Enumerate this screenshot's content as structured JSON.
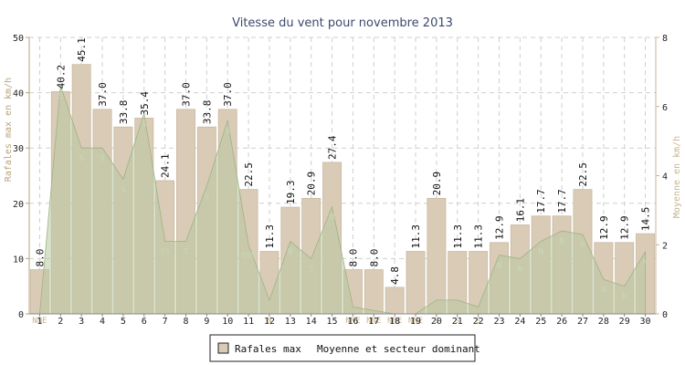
{
  "chart_data": {
    "type": "bar",
    "title": "Vitesse du vent pour novembre 2013",
    "ylabel_left": "Rafales max en km/h",
    "ylabel_right": "Moyenne en km/h",
    "ylim_left": [
      0,
      50
    ],
    "yticks_left": [
      0,
      10,
      20,
      30,
      40,
      50
    ],
    "ylim_right": [
      0,
      8
    ],
    "yticks_right": [
      0,
      2,
      4,
      6,
      8
    ],
    "grid": true,
    "categories": [
      "1",
      "2",
      "3",
      "4",
      "5",
      "6",
      "7",
      "8",
      "9",
      "10",
      "11",
      "12",
      "13",
      "14",
      "15",
      "16",
      "17",
      "18",
      "19",
      "20",
      "21",
      "22",
      "23",
      "24",
      "25",
      "26",
      "27",
      "28",
      "29",
      "30"
    ],
    "series": [
      {
        "name": "Rafales max",
        "type": "bar",
        "axis": "left",
        "color": "#d9cbb6",
        "values": [
          8.0,
          40.2,
          45.1,
          37.0,
          33.8,
          35.4,
          24.1,
          37.0,
          33.8,
          37.0,
          22.5,
          11.3,
          19.3,
          20.9,
          27.4,
          8.0,
          8.0,
          4.8,
          11.3,
          20.9,
          11.3,
          11.3,
          12.9,
          16.1,
          17.7,
          17.7,
          22.5,
          12.9,
          12.9,
          14.5
        ],
        "labels": [
          "8.0",
          "40.2",
          "45.1",
          "37.0",
          "33.8",
          "35.4",
          "24.1",
          "37.0",
          "33.8",
          "37.0",
          "22.5",
          "11.3",
          "19.3",
          "20.9",
          "27.4",
          "8.0",
          "8.0",
          "4.8",
          "11.3",
          "20.9",
          "11.3",
          "11.3",
          "12.9",
          "16.1",
          "17.7",
          "17.7",
          "22.5",
          "12.9",
          "12.9",
          "14.5"
        ]
      },
      {
        "name": "Moyenne et secteur dominant",
        "type": "area",
        "axis": "right",
        "color": "#b8c8a0",
        "values": [
          0.0,
          6.6,
          4.8,
          4.8,
          3.9,
          5.8,
          2.1,
          2.1,
          3.7,
          5.6,
          2.0,
          0.4,
          2.1,
          1.6,
          3.1,
          0.2,
          0.1,
          0.0,
          0.0,
          0.4,
          0.4,
          0.2,
          1.7,
          1.6,
          2.1,
          2.4,
          2.3,
          1.0,
          0.8,
          1.8
        ]
      }
    ],
    "directions": [
      "NNE",
      "S",
      "S",
      "S",
      "S",
      "S",
      "SS",
      "S",
      "S",
      "S",
      "SSO",
      "N",
      "N",
      "S",
      "N",
      "NNE",
      "NNE",
      "NNE",
      "NNE",
      "S",
      "S",
      "S",
      "N",
      "N",
      "N",
      "N",
      "N",
      "N",
      "N",
      "N"
    ],
    "legend": {
      "placement": "bottom-center"
    },
    "colors": {
      "bar": "#d9cbb6",
      "bar_border": "#c9b9a2",
      "area": "#b8c8a0",
      "axis_left": "#b9a27c",
      "axis_right": "#c8b490",
      "title": "#3a4a6b",
      "grid": "#cfcfcf"
    }
  }
}
